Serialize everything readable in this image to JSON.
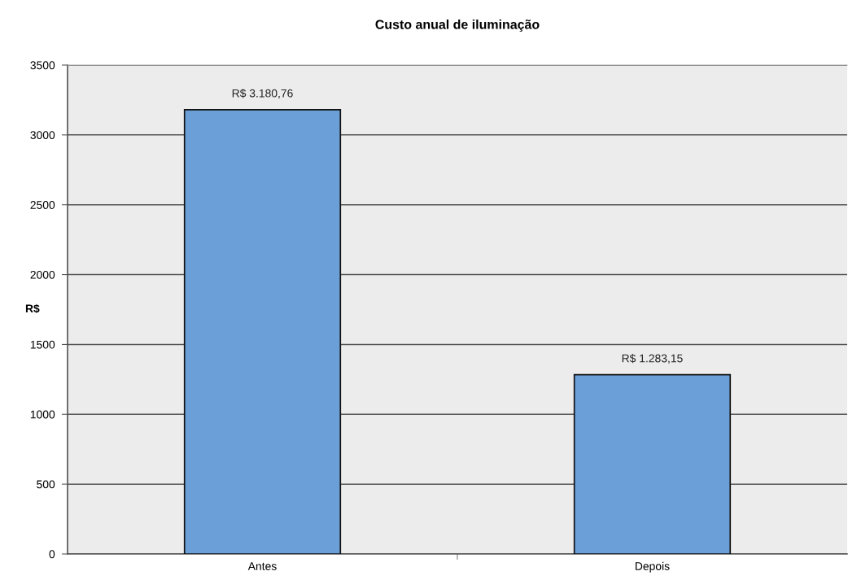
{
  "chart_data": {
    "type": "bar",
    "title": "Custo anual de iluminação",
    "ylabel": "R$",
    "categories": [
      "Antes",
      "Depois"
    ],
    "values": [
      3180.76,
      1283.15
    ],
    "color": "#6a9fd8",
    "value_labels": [
      "R$ 3.180,76",
      "R$ 1.283,15"
    ],
    "ylim": [
      0,
      3500
    ],
    "yticks": [
      0,
      500,
      1000,
      1500,
      2000,
      2500,
      3000,
      3500
    ],
    "grid": "y",
    "legend": false
  }
}
